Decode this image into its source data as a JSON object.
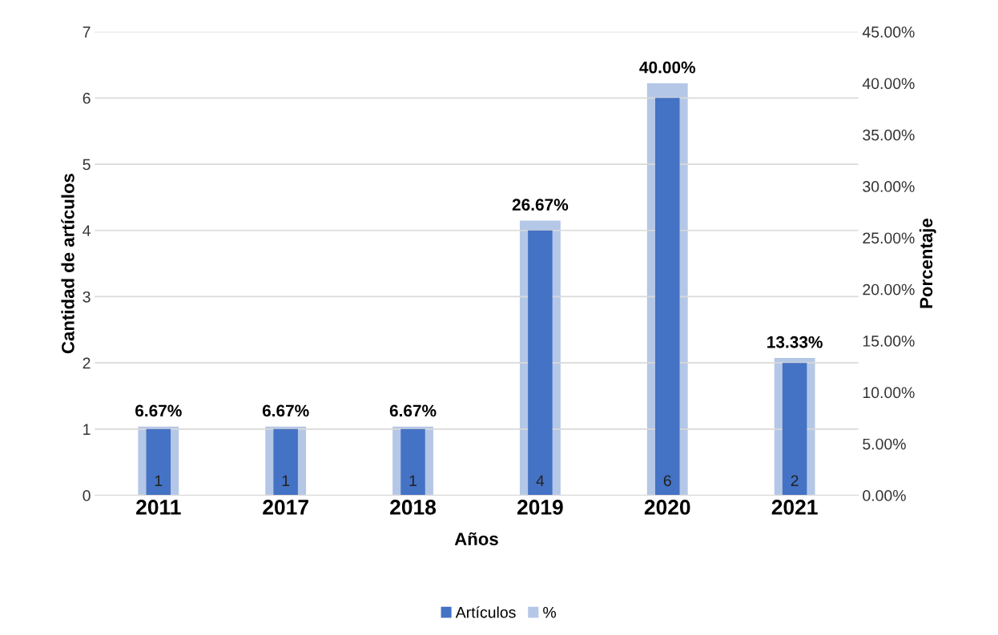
{
  "chart_data": {
    "type": "bar",
    "xlabel": "Años",
    "ylabel": "Cantidad de artículos",
    "y2label": "Porcentaje",
    "categories": [
      "2011",
      "2017",
      "2018",
      "2019",
      "2020",
      "2021"
    ],
    "series": [
      {
        "name": "%",
        "color": "#b4c7e7",
        "axis": "y2",
        "values": [
          6.67,
          6.67,
          6.67,
          26.67,
          40.0,
          13.33
        ],
        "value_labels": [
          "6.67%",
          "6.67%",
          "6.67%",
          "26.67%",
          "40.00%",
          "13.33%"
        ]
      },
      {
        "name": "Artículos",
        "color": "#4472c4",
        "values": [
          1,
          1,
          1,
          4,
          6,
          2
        ],
        "value_labels": [
          "1",
          "1",
          "1",
          "4",
          "6",
          "2"
        ]
      }
    ],
    "ylim": [
      0,
      7
    ],
    "yticks": [
      0,
      1,
      2,
      3,
      4,
      5,
      6,
      7
    ],
    "y2lim": [
      0,
      45
    ],
    "y2ticks": [
      {
        "value": 0,
        "label": "0.00%"
      },
      {
        "value": 5,
        "label": "5.00%"
      },
      {
        "value": 10,
        "label": "10.00%"
      },
      {
        "value": 15,
        "label": "15.00%"
      },
      {
        "value": 20,
        "label": "20.00%"
      },
      {
        "value": 25,
        "label": "25.00%"
      },
      {
        "value": 30,
        "label": "30.00%"
      },
      {
        "value": 35,
        "label": "35.00%"
      },
      {
        "value": 40,
        "label": "40.00%"
      },
      {
        "value": 45,
        "label": "45.00%"
      }
    ],
    "grid": "y",
    "legend": "bottom"
  }
}
